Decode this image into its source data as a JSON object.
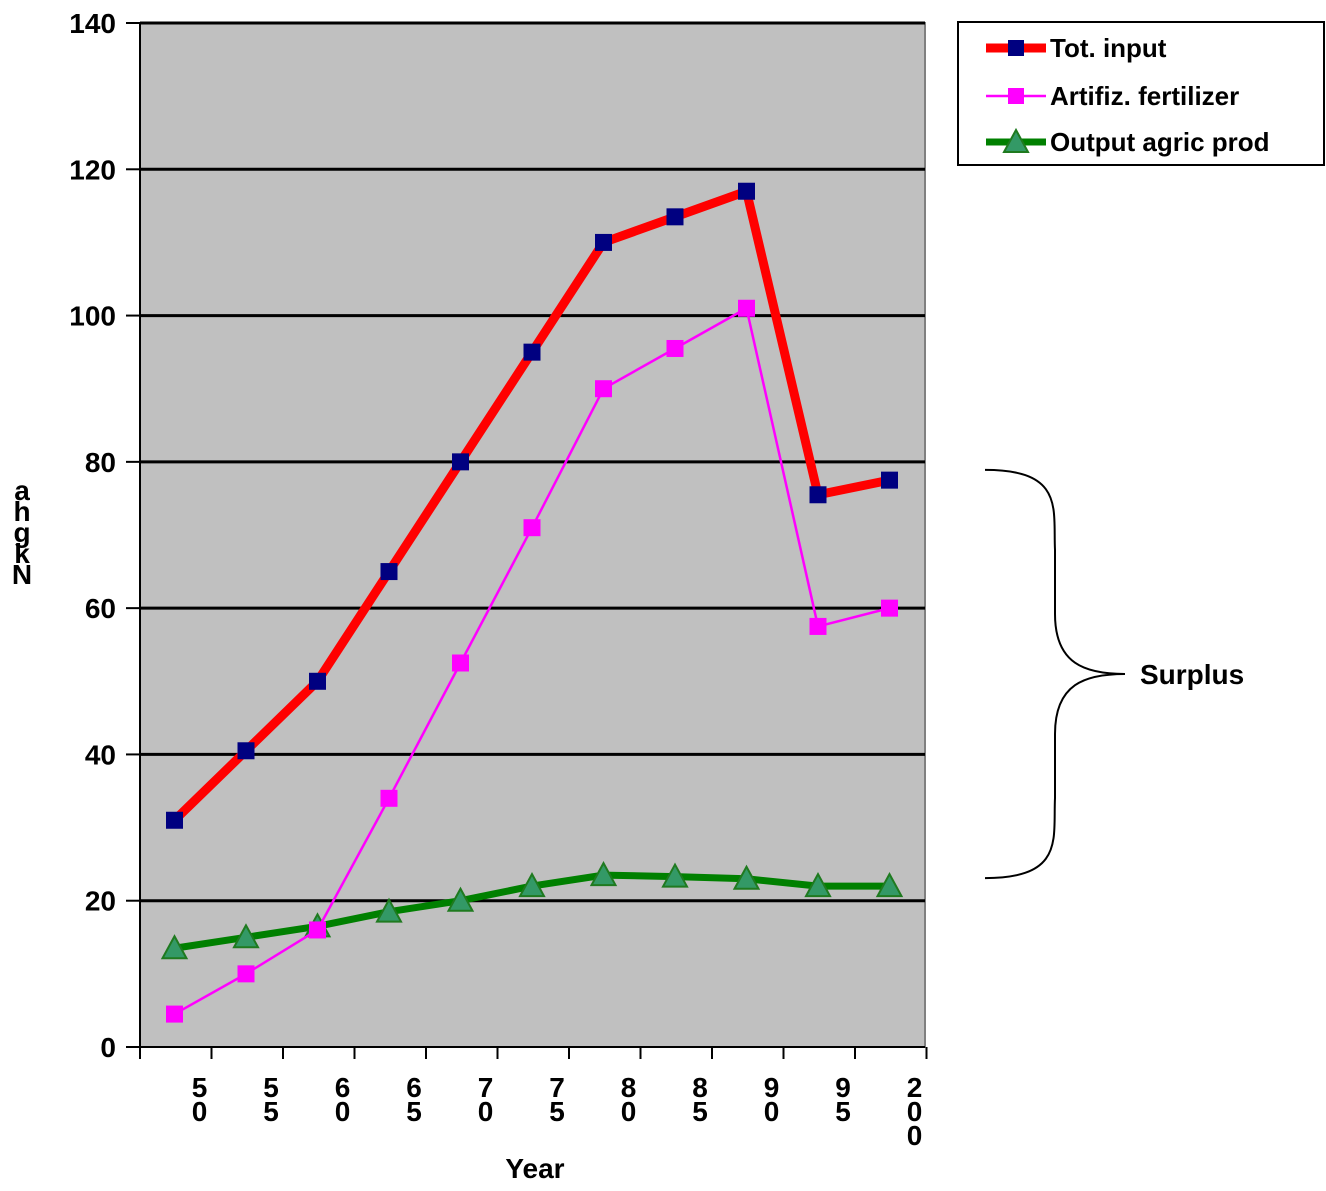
{
  "chart_data": {
    "type": "line",
    "title": "",
    "xlabel": "Year",
    "ylabel": "N kg/ha",
    "ylim": [
      0,
      140
    ],
    "yticks": [
      0,
      20,
      40,
      60,
      80,
      100,
      120,
      140
    ],
    "grid": true,
    "legend_position": "top-right",
    "x_tick_labels": [
      "50",
      "55",
      "60",
      "65",
      "70",
      "75",
      "80",
      "85",
      "90",
      "95",
      "200"
    ],
    "categories": [
      "1950",
      "1955",
      "1960",
      "1965",
      "1970",
      "1975",
      "1980",
      "1985",
      "1990",
      "1995",
      "2000"
    ],
    "series": [
      {
        "name": "Tot. input",
        "color": "#ff0000",
        "marker_color": "#000080",
        "marker": "square",
        "values": [
          31,
          40.5,
          50,
          65,
          80,
          95,
          110,
          113.5,
          117,
          75.5,
          77.5
        ]
      },
      {
        "name": "Artifiz. fertilizer",
        "color": "#ff00ff",
        "marker_color": "#ff00ff",
        "marker": "square",
        "values": [
          4.5,
          10,
          16,
          34,
          52.5,
          71,
          90,
          95.5,
          101,
          57.5,
          60
        ]
      },
      {
        "name": "Output agric prod",
        "color": "#008000",
        "marker_color": "#339966",
        "marker": "triangle",
        "values": [
          13.5,
          15,
          16.5,
          18.5,
          20,
          22,
          23.5,
          23.3,
          23,
          22,
          22
        ]
      }
    ],
    "annotation": "Surplus",
    "annotation_span": [
      22,
      80
    ],
    "plot_background": "#c0c0c0"
  }
}
